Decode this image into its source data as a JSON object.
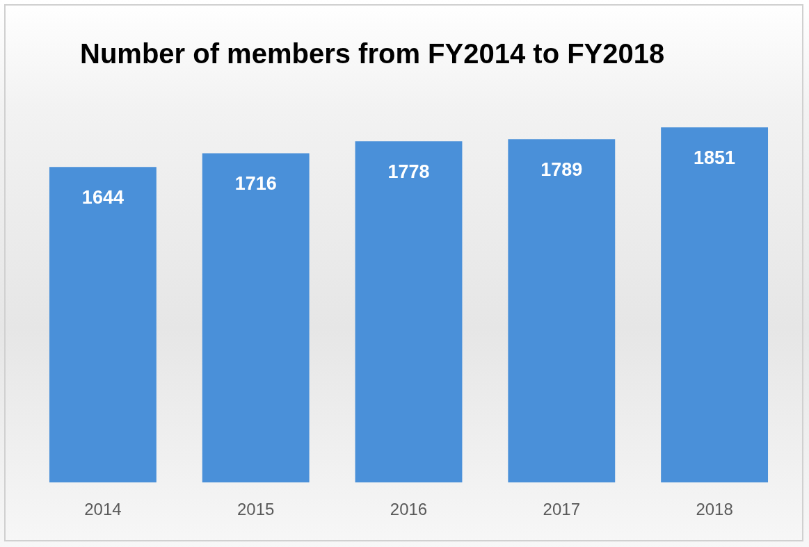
{
  "chart_data": {
    "type": "bar",
    "title": "Number of members from FY2014 to FY2018",
    "categories": [
      "2014",
      "2015",
      "2016",
      "2017",
      "2018"
    ],
    "values": [
      1644,
      1716,
      1778,
      1789,
      1851
    ],
    "color": "#4a90d9",
    "tick_labels": "x",
    "grid": false,
    "legend": false,
    "data_labels": true
  }
}
